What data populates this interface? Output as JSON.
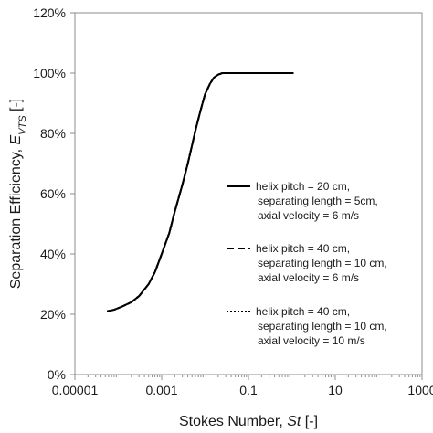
{
  "chart_data": {
    "type": "line",
    "xscale": "log",
    "xlim": [
      1e-05,
      1000
    ],
    "ylim": [
      0,
      1.2
    ],
    "x_ticks": [
      "0.00001",
      "0.001",
      "0.1",
      "10",
      "1000"
    ],
    "y_ticks": [
      "0%",
      "20%",
      "40%",
      "60%",
      "80%",
      "100%",
      "120%"
    ],
    "xlabel": {
      "text": "Stokes Number, ",
      "italic": "St",
      "suffix": " [-]"
    },
    "ylabel": {
      "text": "Separation Efficiency, ",
      "italic": "E",
      "sub": "VTS",
      "suffix": " [-]"
    },
    "grid": false,
    "legend_position": "right",
    "series": [
      {
        "name_lines": [
          "helix pitch = 20 cm,",
          "separating length = 5cm,",
          "axial velocity = 6 m/s"
        ],
        "line_style": "solid",
        "color": "#000000",
        "x": [
          5.5e-05,
          8e-05,
          0.00012,
          0.0002,
          0.0003,
          0.0005,
          0.0007,
          0.001,
          0.0015,
          0.002,
          0.003,
          0.004,
          0.005,
          0.006,
          0.008,
          0.01,
          0.013,
          0.016,
          0.02,
          0.025,
          0.03,
          0.04,
          0.06,
          0.1,
          0.2,
          0.3,
          1.1
        ],
        "y": [
          0.21,
          0.215,
          0.225,
          0.24,
          0.26,
          0.3,
          0.34,
          0.4,
          0.47,
          0.54,
          0.63,
          0.7,
          0.76,
          0.81,
          0.88,
          0.93,
          0.965,
          0.985,
          0.995,
          1.0,
          1.0,
          1.0,
          1.0,
          1.0,
          1.0,
          1.0,
          1.0
        ]
      },
      {
        "name_lines": [
          "helix pitch = 40 cm,",
          "separating length = 10 cm,",
          "axial velocity = 6 m/s"
        ],
        "line_style": "dashed",
        "color": "#000000",
        "x": [
          5.5e-05,
          8e-05,
          0.00012,
          0.0002,
          0.0003,
          0.0005,
          0.0007,
          0.001,
          0.0015,
          0.002,
          0.003,
          0.004,
          0.005,
          0.006,
          0.008,
          0.01,
          0.013,
          0.016,
          0.02,
          0.025,
          0.03,
          0.04,
          0.06,
          0.1,
          0.2,
          0.3,
          1.1
        ],
        "y": [
          0.21,
          0.215,
          0.225,
          0.24,
          0.26,
          0.3,
          0.34,
          0.4,
          0.47,
          0.54,
          0.63,
          0.7,
          0.76,
          0.81,
          0.88,
          0.93,
          0.965,
          0.985,
          0.995,
          1.0,
          1.0,
          1.0,
          1.0,
          1.0,
          1.0,
          1.0,
          1.0
        ]
      },
      {
        "name_lines": [
          "helix pitch = 40 cm,",
          "separating length = 10 cm,",
          "axial velocity = 10 m/s"
        ],
        "line_style": "dotted",
        "color": "#000000",
        "x": [
          5.5e-05,
          8e-05,
          0.00012,
          0.0002,
          0.0003,
          0.0005,
          0.0007,
          0.001,
          0.0015,
          0.002,
          0.003,
          0.004,
          0.005,
          0.006,
          0.008,
          0.01,
          0.013,
          0.016,
          0.02,
          0.025,
          0.03,
          0.04,
          0.06,
          0.1,
          0.2,
          0.3,
          1.1
        ],
        "y": [
          0.21,
          0.215,
          0.225,
          0.24,
          0.26,
          0.3,
          0.34,
          0.4,
          0.47,
          0.54,
          0.63,
          0.7,
          0.76,
          0.81,
          0.88,
          0.93,
          0.965,
          0.985,
          0.995,
          1.0,
          1.0,
          1.0,
          1.0,
          1.0,
          1.0,
          1.0,
          1.0
        ]
      }
    ]
  }
}
